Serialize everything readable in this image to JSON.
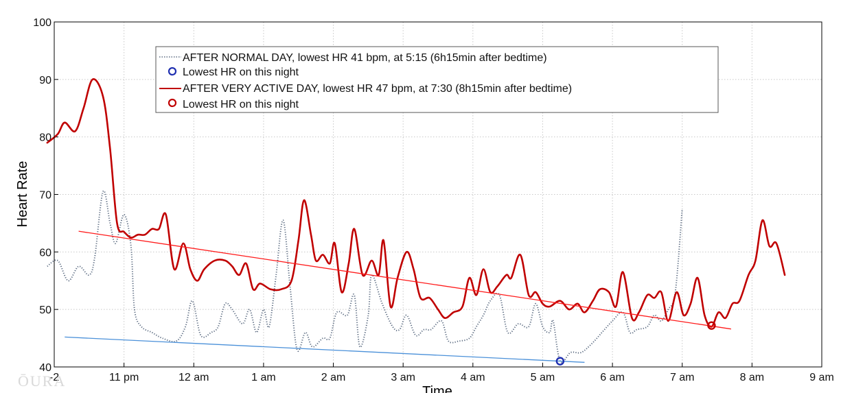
{
  "watermark": "ŌURA",
  "chart_data": {
    "type": "line",
    "xlabel": "Time",
    "ylabel": "Heart Rate",
    "xlim": [
      -2,
      9
    ],
    "ylim": [
      40,
      100
    ],
    "grid": true,
    "legend_position": "top-center",
    "x_ticks": [
      {
        "v": -2,
        "label": "-2"
      },
      {
        "v": -1,
        "label": "11  pm"
      },
      {
        "v": 0,
        "label": "12 am"
      },
      {
        "v": 1,
        "label": "1 am"
      },
      {
        "v": 2,
        "label": "2 am"
      },
      {
        "v": 3,
        "label": "3 am"
      },
      {
        "v": 4,
        "label": "4 am"
      },
      {
        "v": 5,
        "label": "5 am"
      },
      {
        "v": 6,
        "label": "6 am"
      },
      {
        "v": 7,
        "label": "7 am"
      },
      {
        "v": 8,
        "label": "8 am"
      },
      {
        "v": 9,
        "label": "9 am"
      }
    ],
    "y_ticks": [
      {
        "v": 40,
        "label": "40"
      },
      {
        "v": 50,
        "label": "50"
      },
      {
        "v": 60,
        "label": "60"
      },
      {
        "v": 70,
        "label": "70"
      },
      {
        "v": 80,
        "label": "80"
      },
      {
        "v": 90,
        "label": "90"
      },
      {
        "v": 100,
        "label": "100"
      }
    ],
    "legend": [
      {
        "label": "AFTER NORMAL DAY, lowest HR 41 bpm, at 5:15 (6h15min after bedtime)",
        "style": "dotted",
        "color": "#5a6a80"
      },
      {
        "label": "Lowest HR on this night",
        "style": "marker",
        "color": "#1f2fb0"
      },
      {
        "label": "AFTER VERY ACTIVE DAY, lowest HR 47 bpm, at 7:30 (8h15min after bedtime)",
        "style": "solid",
        "color": "#c00000"
      },
      {
        "label": "Lowest HR on this night",
        "style": "marker",
        "color": "#c00000"
      }
    ],
    "series": [
      {
        "name": "AFTER NORMAL DAY",
        "color": "#5a6a80",
        "style": "dotted",
        "points": [
          [
            -2.1,
            57.5
          ],
          [
            -1.95,
            58.5
          ],
          [
            -1.8,
            55
          ],
          [
            -1.65,
            57.5
          ],
          [
            -1.5,
            56
          ],
          [
            -1.42,
            59
          ],
          [
            -1.3,
            70.5
          ],
          [
            -1.2,
            65
          ],
          [
            -1.12,
            61.5
          ],
          [
            -1.0,
            66.5
          ],
          [
            -0.9,
            61
          ],
          [
            -0.85,
            50
          ],
          [
            -0.75,
            47
          ],
          [
            -0.6,
            46
          ],
          [
            -0.45,
            45
          ],
          [
            -0.25,
            44.5
          ],
          [
            -0.12,
            47
          ],
          [
            -0.02,
            51.5
          ],
          [
            0.1,
            45.5
          ],
          [
            0.25,
            46
          ],
          [
            0.35,
            47
          ],
          [
            0.45,
            51
          ],
          [
            0.55,
            50
          ],
          [
            0.7,
            47.5
          ],
          [
            0.8,
            50
          ],
          [
            0.9,
            46
          ],
          [
            1.0,
            50
          ],
          [
            1.08,
            47
          ],
          [
            1.18,
            56
          ],
          [
            1.28,
            65.5
          ],
          [
            1.38,
            54
          ],
          [
            1.48,
            43
          ],
          [
            1.6,
            46
          ],
          [
            1.7,
            43.5
          ],
          [
            1.85,
            45
          ],
          [
            1.95,
            45
          ],
          [
            2.05,
            49.5
          ],
          [
            2.2,
            49
          ],
          [
            2.3,
            52.5
          ],
          [
            2.38,
            43.5
          ],
          [
            2.5,
            49
          ],
          [
            2.55,
            56
          ],
          [
            2.7,
            51
          ],
          [
            2.85,
            47
          ],
          [
            2.95,
            46.5
          ],
          [
            3.05,
            49
          ],
          [
            3.18,
            45.5
          ],
          [
            3.3,
            46.5
          ],
          [
            3.4,
            46.5
          ],
          [
            3.55,
            48
          ],
          [
            3.65,
            44.5
          ],
          [
            3.8,
            44.5
          ],
          [
            3.95,
            45
          ],
          [
            4.05,
            47
          ],
          [
            4.15,
            49
          ],
          [
            4.25,
            51.5
          ],
          [
            4.38,
            52.5
          ],
          [
            4.5,
            46
          ],
          [
            4.65,
            47.5
          ],
          [
            4.8,
            47
          ],
          [
            4.9,
            51
          ],
          [
            5.0,
            47
          ],
          [
            5.1,
            46
          ],
          [
            5.15,
            48
          ],
          [
            5.25,
            41
          ],
          [
            5.4,
            42.5
          ],
          [
            5.55,
            42.5
          ],
          [
            5.7,
            44
          ],
          [
            5.85,
            46
          ],
          [
            6.0,
            48
          ],
          [
            6.15,
            49.5
          ],
          [
            6.25,
            46
          ],
          [
            6.35,
            46.5
          ],
          [
            6.5,
            47
          ],
          [
            6.6,
            49
          ],
          [
            6.7,
            48
          ],
          [
            6.8,
            50
          ],
          [
            6.9,
            53
          ],
          [
            7.0,
            67.5
          ]
        ]
      },
      {
        "name": "AFTER VERY ACTIVE DAY",
        "color": "#c00000",
        "style": "solid",
        "points": [
          [
            -2.1,
            79
          ],
          [
            -1.95,
            80.5
          ],
          [
            -1.85,
            82.5
          ],
          [
            -1.7,
            81
          ],
          [
            -1.58,
            85
          ],
          [
            -1.45,
            90
          ],
          [
            -1.3,
            87
          ],
          [
            -1.2,
            78
          ],
          [
            -1.1,
            65
          ],
          [
            -1.0,
            63.5
          ],
          [
            -0.9,
            62.5
          ],
          [
            -0.8,
            63
          ],
          [
            -0.7,
            63
          ],
          [
            -0.6,
            64
          ],
          [
            -0.5,
            64
          ],
          [
            -0.4,
            66.5
          ],
          [
            -0.28,
            57
          ],
          [
            -0.15,
            61.5
          ],
          [
            -0.05,
            57
          ],
          [
            0.05,
            55
          ],
          [
            0.15,
            57
          ],
          [
            0.3,
            58.5
          ],
          [
            0.45,
            58.5
          ],
          [
            0.55,
            57.5
          ],
          [
            0.65,
            56
          ],
          [
            0.75,
            58
          ],
          [
            0.85,
            53.5
          ],
          [
            0.95,
            54.5
          ],
          [
            1.1,
            53.5
          ],
          [
            1.25,
            53.5
          ],
          [
            1.4,
            55
          ],
          [
            1.5,
            62
          ],
          [
            1.58,
            69
          ],
          [
            1.68,
            63
          ],
          [
            1.75,
            58.5
          ],
          [
            1.85,
            59.5
          ],
          [
            1.95,
            58
          ],
          [
            2.02,
            61.5
          ],
          [
            2.12,
            53
          ],
          [
            2.22,
            58
          ],
          [
            2.3,
            64
          ],
          [
            2.42,
            56
          ],
          [
            2.55,
            58.5
          ],
          [
            2.65,
            56
          ],
          [
            2.72,
            62
          ],
          [
            2.82,
            50.5
          ],
          [
            2.92,
            55.5
          ],
          [
            3.05,
            60
          ],
          [
            3.15,
            57
          ],
          [
            3.25,
            52
          ],
          [
            3.38,
            52
          ],
          [
            3.5,
            50
          ],
          [
            3.6,
            48.5
          ],
          [
            3.72,
            49.5
          ],
          [
            3.85,
            50.5
          ],
          [
            3.95,
            55.5
          ],
          [
            4.05,
            52.5
          ],
          [
            4.15,
            57
          ],
          [
            4.25,
            53
          ],
          [
            4.35,
            54
          ],
          [
            4.48,
            56
          ],
          [
            4.55,
            55.5
          ],
          [
            4.68,
            59.5
          ],
          [
            4.8,
            52.5
          ],
          [
            4.9,
            53
          ],
          [
            5.0,
            51
          ],
          [
            5.1,
            50.5
          ],
          [
            5.25,
            51.5
          ],
          [
            5.38,
            50
          ],
          [
            5.5,
            51
          ],
          [
            5.6,
            49.5
          ],
          [
            5.72,
            51.5
          ],
          [
            5.82,
            53.5
          ],
          [
            5.95,
            53
          ],
          [
            6.05,
            50.5
          ],
          [
            6.15,
            56.5
          ],
          [
            6.28,
            48.5
          ],
          [
            6.38,
            49.5
          ],
          [
            6.5,
            52.5
          ],
          [
            6.6,
            52
          ],
          [
            6.7,
            53
          ],
          [
            6.8,
            48
          ],
          [
            6.92,
            53
          ],
          [
            7.02,
            49
          ],
          [
            7.12,
            51
          ],
          [
            7.22,
            55.5
          ],
          [
            7.32,
            49
          ],
          [
            7.42,
            47
          ],
          [
            7.52,
            49.5
          ],
          [
            7.62,
            48.5
          ],
          [
            7.72,
            51
          ],
          [
            7.82,
            51.5
          ],
          [
            7.95,
            56
          ],
          [
            8.05,
            58.5
          ],
          [
            8.15,
            65.5
          ],
          [
            8.25,
            61
          ],
          [
            8.35,
            61.5
          ],
          [
            8.47,
            56
          ]
        ]
      }
    ],
    "trend_lines": [
      {
        "name": "normal-day-trend",
        "color": "#4a90d9",
        "from": [
          -1.85,
          45.2
        ],
        "to": [
          5.6,
          40.8
        ]
      },
      {
        "name": "active-day-trend",
        "color": "#ff1a1a",
        "from": [
          -1.65,
          63.6
        ],
        "to": [
          7.7,
          46.6
        ]
      }
    ],
    "lowest_points": [
      {
        "name": "normal-day-lowest",
        "x": 5.25,
        "y": 41,
        "color": "#1f2fb0"
      },
      {
        "name": "active-day-lowest",
        "x": 7.42,
        "y": 47.2,
        "color": "#c00000"
      }
    ]
  }
}
